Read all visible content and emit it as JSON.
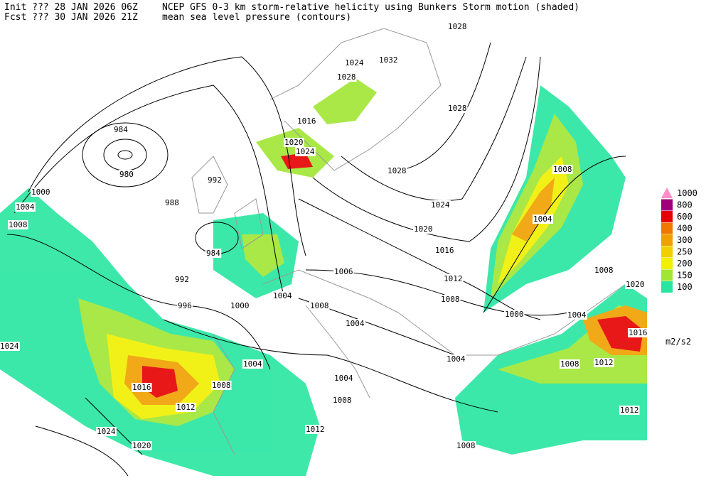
{
  "header": {
    "init": "Init  ??? 28 JAN 2026 06Z",
    "fcst": "Fcst ??? 30 JAN 2026 21Z",
    "title": "NCEP GFS 0-3 km storm-relative helicity using Bunkers Storm motion (shaded)",
    "subtitle": "mean sea level pressure (contours)"
  },
  "legend": {
    "unit": "m2/s2",
    "items": [
      {
        "label": "1000",
        "color": "#ff8cc8"
      },
      {
        "label": "800",
        "color": "#a0007a"
      },
      {
        "label": "600",
        "color": "#e60000"
      },
      {
        "label": "400",
        "color": "#f07800"
      },
      {
        "label": "300",
        "color": "#f0a000"
      },
      {
        "label": "250",
        "color": "#f0d000"
      },
      {
        "label": "200",
        "color": "#f0f000"
      },
      {
        "label": "150",
        "color": "#a0e632"
      },
      {
        "label": "100",
        "color": "#28e6a0"
      }
    ]
  },
  "contour_labels": [
    "984",
    "980",
    "1000",
    "1004",
    "1008",
    "988",
    "992",
    "984",
    "992",
    "996",
    "1000",
    "1004",
    "1004",
    "1008",
    "1004",
    "1004",
    "1008",
    "1012",
    "1008",
    "1016",
    "1012",
    "1008",
    "1024",
    "1020",
    "1024",
    "1032",
    "1024",
    "1028",
    "1016",
    "1020",
    "1024",
    "1028",
    "1024",
    "1020",
    "1016",
    "1012",
    "1008",
    "1006",
    "1028",
    "1008",
    "1004",
    "1000",
    "1004",
    "1008",
    "1020",
    "1016",
    "1012",
    "1008",
    "1004",
    "1012",
    "1028"
  ]
}
